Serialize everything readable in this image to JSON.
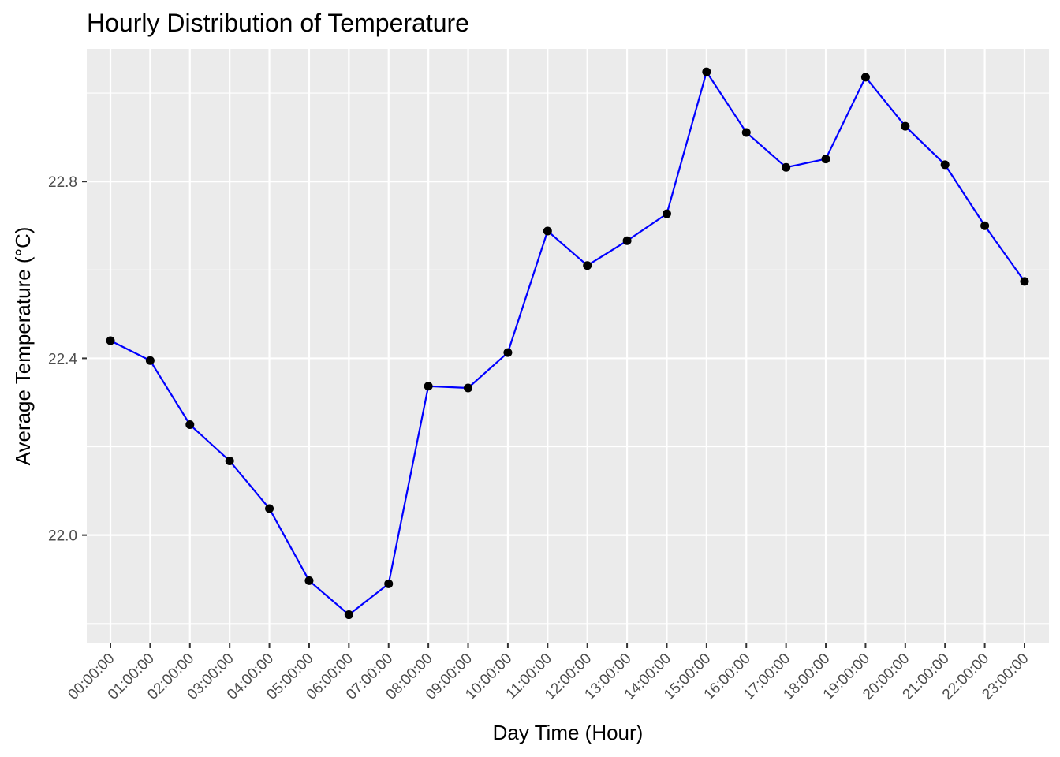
{
  "chart_data": {
    "type": "line",
    "title": "Hourly Distribution of Temperature",
    "xlabel": "Day Time (Hour)",
    "ylabel": "Average Temperature (°C)",
    "categories": [
      "00:00:00",
      "01:00:00",
      "02:00:00",
      "03:00:00",
      "04:00:00",
      "05:00:00",
      "06:00:00",
      "07:00:00",
      "08:00:00",
      "09:00:00",
      "10:00:00",
      "11:00:00",
      "12:00:00",
      "13:00:00",
      "14:00:00",
      "15:00:00",
      "16:00:00",
      "17:00:00",
      "18:00:00",
      "19:00:00",
      "20:00:00",
      "21:00:00",
      "22:00:00",
      "23:00:00"
    ],
    "values": [
      22.44,
      22.395,
      22.25,
      22.168,
      22.06,
      21.897,
      21.82,
      21.89,
      22.337,
      22.333,
      22.413,
      22.688,
      22.61,
      22.666,
      22.727,
      23.048,
      22.911,
      22.832,
      22.851,
      23.036,
      22.925,
      22.838,
      22.7,
      22.574
    ],
    "yticks": [
      22.0,
      22.4,
      22.8
    ],
    "ytick_labels": [
      "22.0",
      "22.4",
      "22.8"
    ],
    "ylim": [
      21.755,
      23.1
    ],
    "grid": true,
    "colors": {
      "line": "#0000ff",
      "point": "#000000",
      "panel": "#ebebeb",
      "grid": "#ffffff"
    }
  }
}
